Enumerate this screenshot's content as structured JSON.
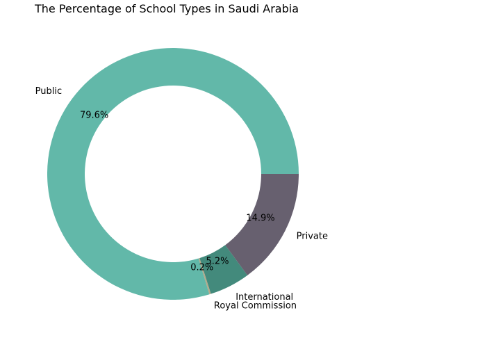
{
  "chart_data": {
    "type": "pie",
    "donut": true,
    "title": "The Percentage of School Types in Saudi Arabia",
    "categories": [
      "Public",
      "Royal Commission",
      "International",
      "Private"
    ],
    "values": [
      79.6,
      0.2,
      5.2,
      14.9
    ],
    "value_labels": [
      "79.6%",
      "0.2%",
      "5.2%",
      "14.9%"
    ],
    "colors": [
      "#62b8a9",
      "#b5a98a",
      "#438a7c",
      "#67606f"
    ],
    "direction": "counterclockwise",
    "legend": "none"
  }
}
